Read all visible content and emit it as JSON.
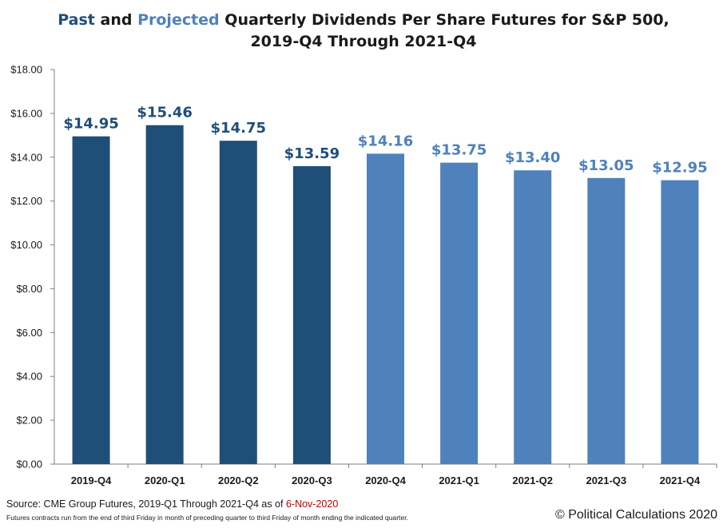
{
  "title": {
    "word_past": "Past",
    "word_and": "and",
    "word_projected": "Projected",
    "rest_line1": "Quarterly Dividends Per Share Futures for S&P 500,",
    "line2": "2019-Q4 Through 2021-Q4"
  },
  "colors": {
    "past": "#1f4e79",
    "projected": "#4f81bd",
    "source_date": "#c00000"
  },
  "chart_data": {
    "type": "bar",
    "categories": [
      "2019-Q4",
      "2020-Q1",
      "2020-Q2",
      "2020-Q3",
      "2020-Q4",
      "2021-Q1",
      "2021-Q2",
      "2021-Q3",
      "2021-Q4"
    ],
    "values": [
      14.95,
      15.46,
      14.75,
      13.59,
      14.16,
      13.75,
      13.4,
      13.05,
      12.95
    ],
    "data_labels": [
      "$14.95",
      "$15.46",
      "$14.75",
      "$13.59",
      "$14.16",
      "$13.75",
      "$13.40",
      "$13.05",
      "$12.95"
    ],
    "status": [
      "past",
      "past",
      "past",
      "past",
      "projected",
      "projected",
      "projected",
      "projected",
      "projected"
    ],
    "ylim": [
      0,
      18
    ],
    "yticks": [
      0,
      2,
      4,
      6,
      8,
      10,
      12,
      14,
      16,
      18
    ],
    "ytick_labels": [
      "$0.00",
      "$2.00",
      "$4.00",
      "$6.00",
      "$8.00",
      "$10.00",
      "$12.00",
      "$14.00",
      "$16.00",
      "$18.00"
    ],
    "grid": false,
    "legend": "none"
  },
  "footer": {
    "source_prefix": "Source:  CME Group Futures, 2019-Q1 Through 2021-Q4 as of",
    "source_date": "6-Nov-2020",
    "note": "Futures contracts run from the end of third Friday in month of preceding quarter to third Friday of month ending the indicated quarter.",
    "copyright": "© Political Calculations 2020"
  }
}
